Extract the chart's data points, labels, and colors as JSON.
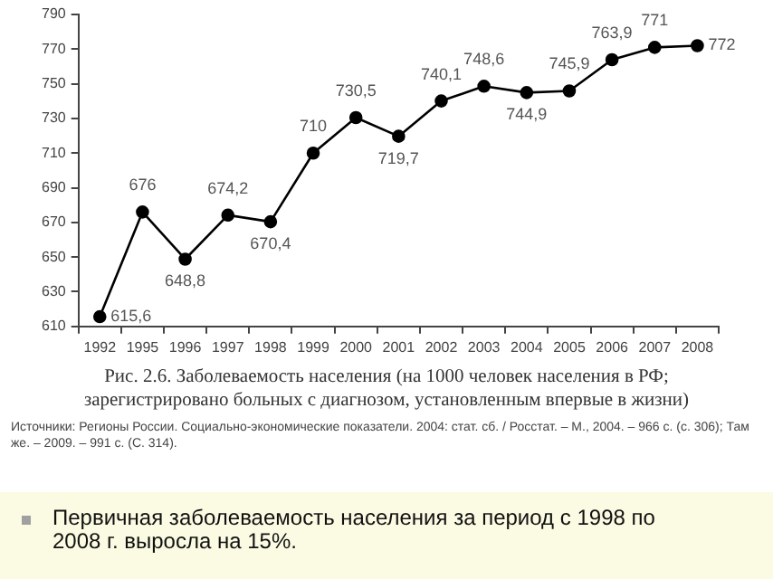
{
  "chart_data": {
    "type": "line",
    "title": "Рис. 2.6. Заболеваемость населения (на 1000 человек населения в РФ; зарегистрировано больных с диагнозом, установленным впервые в жизни)",
    "categories": [
      "1992",
      "1995",
      "1996",
      "1997",
      "1998",
      "1999",
      "2000",
      "2001",
      "2002",
      "2003",
      "2004",
      "2005",
      "2006",
      "2007",
      "2008"
    ],
    "series": [
      {
        "color": "#000000",
        "values": [
          615.6,
          676,
          648.8,
          674.2,
          670.4,
          710,
          730.5,
          719.7,
          740.1,
          748.6,
          744.9,
          745.9,
          763.9,
          771,
          772
        ],
        "value_labels": [
          "615,6",
          "676",
          "648,8",
          "674,2",
          "670,4",
          "710",
          "730,5",
          "719,7",
          "740,1",
          "748,6",
          "744,9",
          "745,9",
          "763,9",
          "771",
          "772"
        ]
      }
    ],
    "ylim": [
      610,
      790
    ],
    "yticks": [
      610,
      630,
      650,
      670,
      690,
      710,
      730,
      750,
      770,
      790
    ],
    "grid": false,
    "legend": false,
    "marker": "circle",
    "line_style": "solid",
    "annotations": [
      "Источники: Регионы России. Социально-экономические показатели. 2004: стат. сб. / Росстат. – М., 2004. – 966 с. (с. 306); Там же. – 2009. – 991 с. (С. 314).",
      "Первичная заболеваемость населения за период с 1998 по 2008  г. выросла на 15%."
    ]
  }
}
